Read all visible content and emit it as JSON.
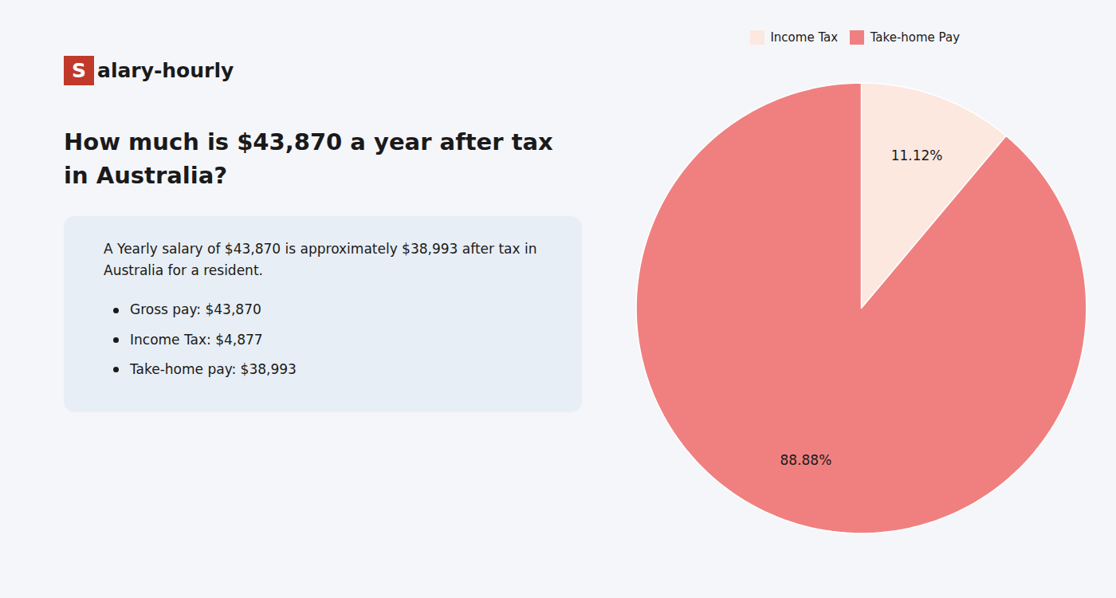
{
  "chart_data": {
    "type": "pie",
    "title": "How much is $43,870 a year after tax in Australia?",
    "annotations": [
      "Salary-hourly",
      "A Yearly salary of $43,870 is approximately $38,993 after tax in Australia for a resident.",
      "Gross pay: $43,870",
      "Income Tax: $4,877",
      "Take-home pay: $38,993"
    ],
    "categories": [
      "Income Tax",
      "Take-home Pay"
    ],
    "values": [
      11.12,
      88.88
    ],
    "value_labels": [
      "11.12%",
      "88.88%"
    ],
    "colors": [
      "#fce8df",
      "#f08080"
    ],
    "data_labels": true,
    "legend": "top"
  }
}
